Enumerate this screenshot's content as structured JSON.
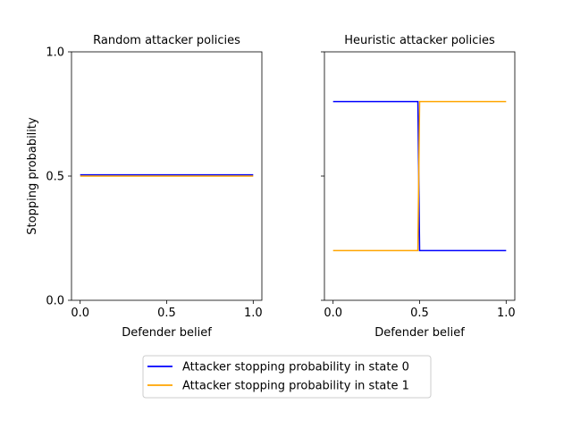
{
  "figure": {
    "y_axis_label": "Stopping probability",
    "legend": {
      "placement": "bottom-center",
      "entries": [
        {
          "label": "Attacker stopping probability in state 0",
          "color": "#0000ff"
        },
        {
          "label": "Attacker stopping probability in state 1",
          "color": "#ffa500"
        }
      ]
    }
  },
  "chart_data": [
    {
      "type": "line",
      "title": "Random attacker policies",
      "xlabel": "Defender belief",
      "ylabel": "Stopping probability",
      "xlim": [
        0,
        1
      ],
      "ylim": [
        0,
        1
      ],
      "xticks": [
        "0.0",
        "0.5",
        "1.0"
      ],
      "yticks": [
        "0.0",
        "0.5",
        "1.0"
      ],
      "grid": false,
      "series": [
        {
          "name": "Attacker stopping probability in state 0",
          "color": "#0000ff",
          "x": [
            0,
            1
          ],
          "y": [
            0.505,
            0.505
          ]
        },
        {
          "name": "Attacker stopping probability in state 1",
          "color": "#ffa500",
          "x": [
            0,
            1
          ],
          "y": [
            0.5,
            0.5
          ]
        }
      ]
    },
    {
      "type": "line",
      "title": "Heuristic attacker policies",
      "xlabel": "Defender belief",
      "ylabel": "",
      "xlim": [
        0,
        1
      ],
      "ylim": [
        0,
        1
      ],
      "xticks": [
        "0.0",
        "0.5",
        "1.0"
      ],
      "yticks": [
        "",
        "",
        ""
      ],
      "grid": false,
      "series": [
        {
          "name": "Attacker stopping probability in state 0",
          "color": "#0000ff",
          "x": [
            0,
            0.49,
            0.5,
            1
          ],
          "y": [
            0.8,
            0.8,
            0.2,
            0.2
          ]
        },
        {
          "name": "Attacker stopping probability in state 1",
          "color": "#ffa500",
          "x": [
            0,
            0.49,
            0.5,
            1
          ],
          "y": [
            0.2,
            0.2,
            0.8,
            0.8
          ]
        }
      ]
    }
  ]
}
